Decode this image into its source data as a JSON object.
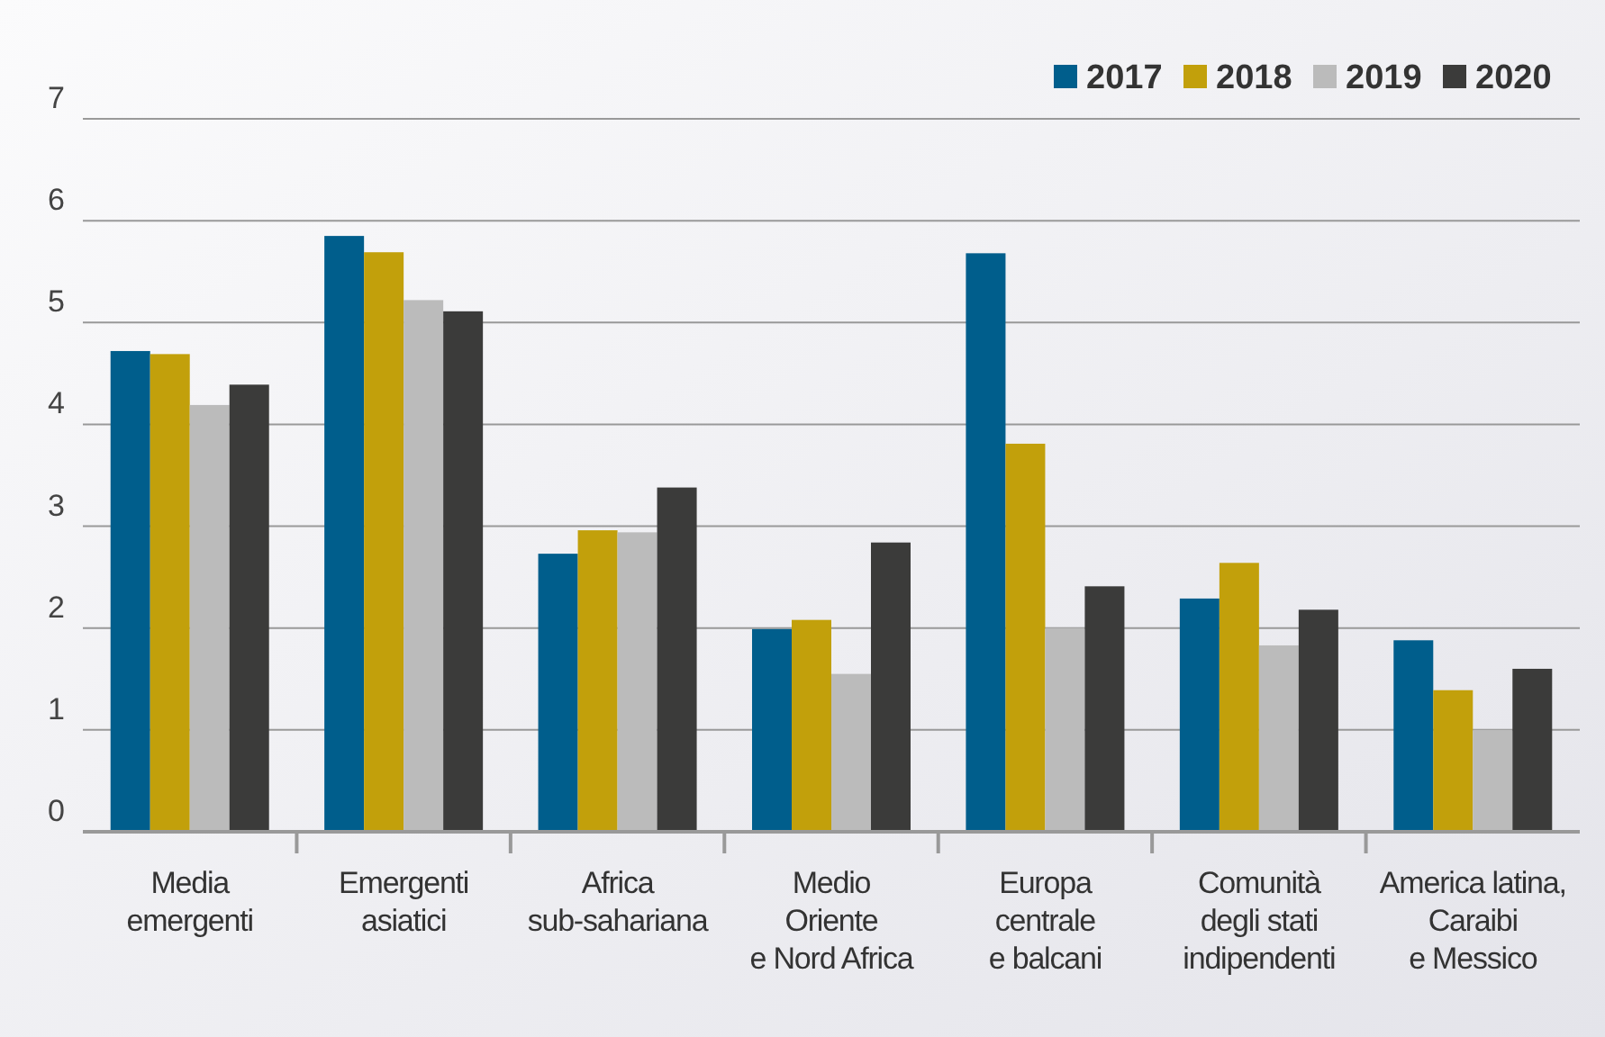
{
  "chart_data": {
    "type": "bar",
    "categories": [
      "Media\nemergenti",
      "Emergenti\nasiatici",
      "Africa\nsub-sahariana",
      "Medio\nOriente\ne Nord Africa",
      "Europa\ncentrale\ne balcani",
      "Comunità\ndegli stati\nindipendenti",
      "America latina,\nCaraibi\ne Messico"
    ],
    "series": [
      {
        "name": "2017",
        "color": "#005e8c",
        "values": [
          4.72,
          5.85,
          2.73,
          1.99,
          5.68,
          2.29,
          1.88
        ]
      },
      {
        "name": "2018",
        "color": "#c2a00b",
        "values": [
          4.69,
          5.69,
          2.96,
          2.08,
          3.81,
          2.64,
          1.39
        ]
      },
      {
        "name": "2019",
        "color": "#bbbbbb",
        "values": [
          4.19,
          5.22,
          2.94,
          1.55,
          2.0,
          1.83,
          1.0
        ]
      },
      {
        "name": "2020",
        "color": "#3b3b3a",
        "values": [
          4.39,
          5.11,
          3.38,
          2.84,
          2.41,
          2.18,
          1.6
        ]
      }
    ],
    "ylim": [
      0,
      7
    ],
    "yticks": [
      0,
      1,
      2,
      3,
      4,
      5,
      6,
      7
    ],
    "grid": "y",
    "legend": "top right"
  }
}
